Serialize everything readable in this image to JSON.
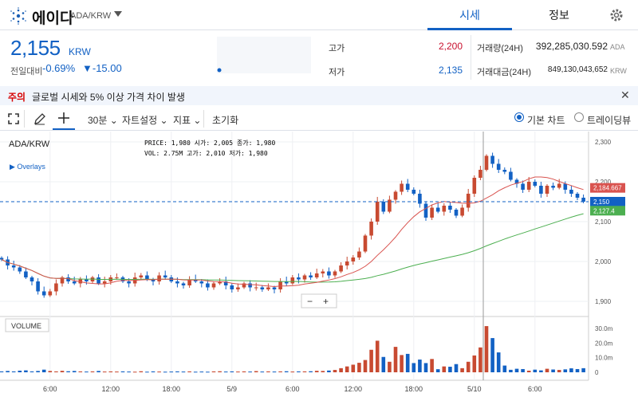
{
  "header": {
    "coin_name": "에이다",
    "pair": "ADA/KRW",
    "tabs": [
      "시세",
      "정보"
    ]
  },
  "price": {
    "value": "2,155",
    "unit": "KRW",
    "change_label": "전일대비",
    "change_pct": "-0.69%",
    "change_abs": "▼-15.00"
  },
  "stats": {
    "high_label": "고가",
    "high": "2,200",
    "low_label": "저가",
    "low": "2,135",
    "volume_label": "거래량(24H)",
    "volume": "392,285,030.592",
    "volume_unit": "ADA",
    "amount_label": "거래대금(24H)",
    "amount": "849,130,043,652",
    "amount_unit": "KRW"
  },
  "notice": {
    "label": "주의",
    "text": "글로벌 시세와 5% 이상 가격 차이 발생"
  },
  "toolbar": {
    "interval": "30분",
    "chart_settings": "자트설정",
    "indicator": "지표",
    "reset": "초기화",
    "basic_chart": "기본 차트",
    "trading_view": "트레이딩뷰"
  },
  "legend": {
    "title": "ADA/KRW",
    "overlays": "Overlays",
    "price_line": "PRICE: 1,980   시가: 2,005   종가: 1,980",
    "vol_line": "VOL:   2.75M   고가: 2,010   저가: 1,980",
    "volume_label": "VOLUME",
    "zoom_out": "−",
    "zoom_in": "+"
  },
  "colors": {
    "up": "#c84a31",
    "down": "#1261c4",
    "ma_red": "#d9534f",
    "ma_green": "#4caf50",
    "accent": "#1261c4",
    "arrow": "#e60012"
  },
  "chart_data": {
    "type": "candlestick",
    "time_ticks": [
      {
        "i": 8,
        "label": "6:00"
      },
      {
        "i": 18,
        "label": "12:00"
      },
      {
        "i": 28,
        "label": "18:00"
      },
      {
        "i": 38,
        "label": "5/9"
      },
      {
        "i": 48,
        "label": "6:00"
      },
      {
        "i": 58,
        "label": "12:00"
      },
      {
        "i": 68,
        "label": "18:00"
      },
      {
        "i": 78,
        "label": "5/10"
      },
      {
        "i": 88,
        "label": "6:00"
      }
    ],
    "price_ticks": [
      {
        "v": 2300,
        "label": "2,300"
      },
      {
        "v": 2200,
        "label": "2,200"
      },
      {
        "v": 2100,
        "label": "2,100"
      },
      {
        "v": 2000,
        "label": "2,000"
      },
      {
        "v": 1900,
        "label": "1,900"
      }
    ],
    "vol_ticks": [
      {
        "v": 30,
        "label": "30.0m"
      },
      {
        "v": 20,
        "label": "20.0m"
      },
      {
        "v": 10,
        "label": "10.0m"
      },
      {
        "v": 0,
        "label": "0"
      }
    ],
    "y_range": [
      1870,
      2320
    ],
    "vol_range": [
      0,
      36
    ],
    "current_price": {
      "value": 2150,
      "label": "2,150"
    },
    "ma_red_last": {
      "value": 2184.667,
      "label": "2,184.667"
    },
    "ma_green_last": {
      "value": 2127.4,
      "label": "2,127.4"
    },
    "close": [
      2005,
      1990,
      1985,
      1975,
      1960,
      1950,
      1925,
      1915,
      1925,
      1945,
      1960,
      1950,
      1945,
      1955,
      1950,
      1960,
      1945,
      1950,
      1960,
      1960,
      1950,
      1945,
      1960,
      1965,
      1955,
      1950,
      1965,
      1960,
      1950,
      1945,
      1940,
      1955,
      1950,
      1945,
      1935,
      1945,
      1950,
      1940,
      1930,
      1935,
      1945,
      1935,
      1935,
      1930,
      1935,
      1930,
      1950,
      1945,
      1960,
      1955,
      1965,
      1960,
      1970,
      1975,
      1965,
      1975,
      1990,
      2000,
      2010,
      2025,
      2065,
      2100,
      2150,
      2125,
      2155,
      2175,
      2195,
      2180,
      2170,
      2145,
      2110,
      2135,
      2125,
      2140,
      2130,
      2115,
      2135,
      2170,
      2210,
      2230,
      2265,
      2245,
      2230,
      2225,
      2205,
      2195,
      2180,
      2200,
      2190,
      2170,
      2190,
      2185,
      2195,
      2180,
      2170,
      2160,
      2150
    ],
    "volume": [
      0.6,
      0.9,
      0.6,
      1.1,
      1.3,
      0.6,
      0.9,
      1.8,
      0.9,
      0.6,
      1.0,
      0.7,
      0.9,
      0.6,
      0.5,
      0.6,
      0.9,
      0.5,
      0.6,
      0.5,
      0.6,
      0.5,
      0.4,
      0.7,
      0.4,
      0.6,
      0.5,
      0.4,
      0.5,
      0.6,
      0.5,
      0.6,
      0.4,
      0.5,
      0.4,
      0.6,
      0.7,
      0.5,
      0.6,
      0.5,
      0.6,
      0.5,
      0.8,
      0.5,
      0.6,
      0.5,
      0.6,
      0.7,
      0.5,
      0.6,
      0.6,
      0.7,
      1.0,
      0.9,
      1.2,
      1.6,
      2.8,
      4.0,
      5.2,
      6.5,
      8.4,
      15.4,
      21.6,
      10.5,
      7.2,
      17.4,
      11.8,
      12.6,
      6.3,
      8.7,
      6.3,
      9.1,
      2.1,
      4.0,
      3.8,
      5.6,
      2.8,
      7.2,
      11.5,
      17.0,
      31.6,
      23.4,
      13.6,
      4.6,
      1.7,
      2.4,
      2.2,
      1.1,
      1.8,
      1.3,
      2.4,
      1.9,
      1.6,
      2.0,
      2.7,
      2.2,
      2.8
    ]
  }
}
